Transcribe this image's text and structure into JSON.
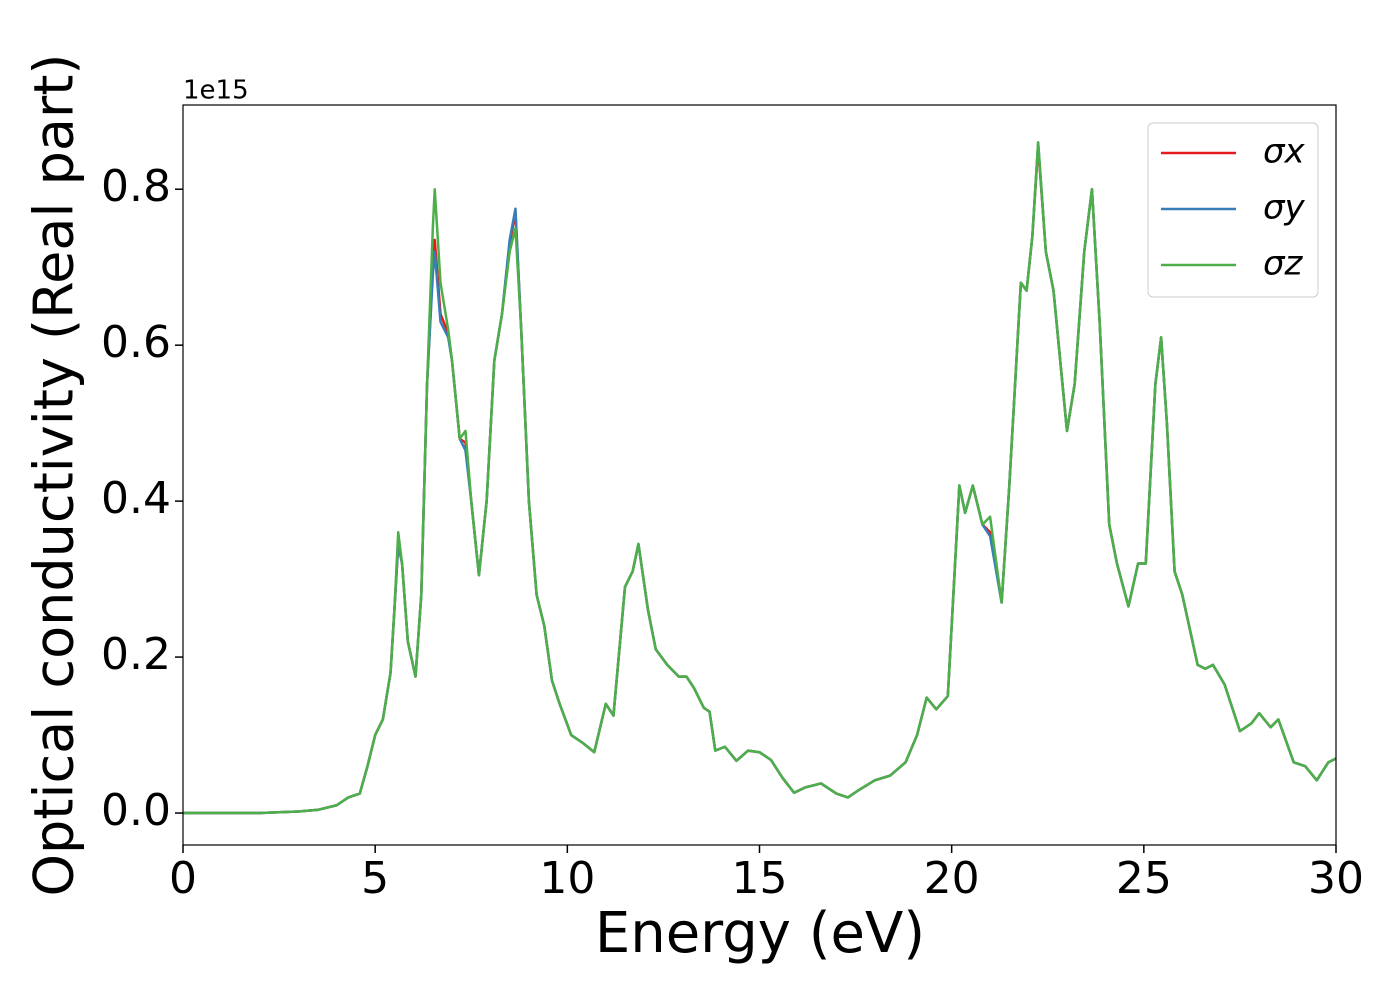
{
  "chart_data": {
    "type": "line",
    "xlabel": "Energy (eV)",
    "ylabel": "Optical conductivity (Real part)",
    "y_offset_label": "1e15",
    "xlim": [
      0,
      30
    ],
    "xticks": [
      0,
      5,
      10,
      15,
      20,
      25,
      30
    ],
    "ylim": [
      -0.041,
      0.908
    ],
    "yticks": [
      {
        "value": 0,
        "label": "0.0"
      },
      0.2,
      0.4,
      0.6,
      0.8
    ],
    "legend": "upper right",
    "x": [
      0,
      2,
      3,
      3.5,
      4,
      4.3,
      4.6,
      4.8,
      5.0,
      5.2,
      5.4,
      5.5,
      5.6,
      5.7,
      5.85,
      6.05,
      6.2,
      6.35,
      6.5,
      6.55,
      6.7,
      6.9,
      7.0,
      7.2,
      7.35,
      7.5,
      7.7,
      7.9,
      8.1,
      8.3,
      8.5,
      8.65,
      8.8,
      9.0,
      9.2,
      9.4,
      9.6,
      9.8,
      10.1,
      10.4,
      10.7,
      11.0,
      11.2,
      11.5,
      11.7,
      11.85,
      12.1,
      12.3,
      12.6,
      12.9,
      13.1,
      13.3,
      13.55,
      13.7,
      13.85,
      14.1,
      14.4,
      14.7,
      15.0,
      15.3,
      15.6,
      15.9,
      16.2,
      16.6,
      17.0,
      17.3,
      17.6,
      18.0,
      18.4,
      18.8,
      19.1,
      19.35,
      19.6,
      19.9,
      20.2,
      20.35,
      20.55,
      20.8,
      21.0,
      21.3,
      21.5,
      21.8,
      21.95,
      22.1,
      22.25,
      22.45,
      22.65,
      23.0,
      23.2,
      23.45,
      23.65,
      23.85,
      24.1,
      24.3,
      24.6,
      24.85,
      25.05,
      25.3,
      25.45,
      25.6,
      25.8,
      26.0,
      26.4,
      26.6,
      26.8,
      27.1,
      27.5,
      27.8,
      28.0,
      28.3,
      28.5,
      28.9,
      29.2,
      29.5,
      29.8,
      30
    ],
    "series": [
      {
        "name": "σx",
        "color": "#e41a1c",
        "values": [
          0,
          0,
          0.002,
          0.004,
          0.01,
          0.02,
          0.025,
          0.06,
          0.1,
          0.12,
          0.18,
          0.26,
          0.345,
          0.32,
          0.22,
          0.175,
          0.28,
          0.55,
          0.7,
          0.735,
          0.64,
          0.615,
          0.58,
          0.48,
          0.475,
          0.4,
          0.305,
          0.4,
          0.58,
          0.64,
          0.73,
          0.77,
          0.62,
          0.4,
          0.28,
          0.24,
          0.17,
          0.14,
          0.1,
          0.09,
          0.078,
          0.14,
          0.125,
          0.29,
          0.31,
          0.345,
          0.26,
          0.21,
          0.19,
          0.175,
          0.175,
          0.16,
          0.135,
          0.13,
          0.08,
          0.085,
          0.067,
          0.08,
          0.078,
          0.068,
          0.045,
          0.026,
          0.033,
          0.038,
          0.025,
          0.02,
          0.03,
          0.042,
          0.048,
          0.065,
          0.1,
          0.148,
          0.133,
          0.15,
          0.42,
          0.385,
          0.42,
          0.37,
          0.36,
          0.27,
          0.42,
          0.68,
          0.67,
          0.74,
          0.855,
          0.72,
          0.67,
          0.49,
          0.55,
          0.72,
          0.8,
          0.63,
          0.37,
          0.32,
          0.265,
          0.32,
          0.32,
          0.55,
          0.61,
          0.5,
          0.31,
          0.28,
          0.19,
          0.185,
          0.19,
          0.165,
          0.105,
          0.115,
          0.128,
          0.11,
          0.12,
          0.065,
          0.06,
          0.042,
          0.065,
          0.07
        ]
      },
      {
        "name": "σy",
        "color": "#377eb8",
        "values": [
          0,
          0,
          0.002,
          0.004,
          0.01,
          0.02,
          0.025,
          0.06,
          0.1,
          0.12,
          0.18,
          0.26,
          0.345,
          0.32,
          0.22,
          0.175,
          0.28,
          0.55,
          0.69,
          0.72,
          0.63,
          0.61,
          0.58,
          0.48,
          0.465,
          0.4,
          0.305,
          0.4,
          0.58,
          0.64,
          0.735,
          0.775,
          0.62,
          0.4,
          0.28,
          0.24,
          0.17,
          0.14,
          0.1,
          0.09,
          0.078,
          0.14,
          0.125,
          0.29,
          0.31,
          0.345,
          0.26,
          0.21,
          0.19,
          0.175,
          0.175,
          0.16,
          0.135,
          0.13,
          0.08,
          0.085,
          0.067,
          0.08,
          0.078,
          0.068,
          0.045,
          0.026,
          0.033,
          0.038,
          0.025,
          0.02,
          0.03,
          0.042,
          0.048,
          0.065,
          0.1,
          0.148,
          0.133,
          0.15,
          0.42,
          0.385,
          0.42,
          0.37,
          0.355,
          0.27,
          0.42,
          0.68,
          0.67,
          0.74,
          0.86,
          0.72,
          0.67,
          0.49,
          0.55,
          0.72,
          0.8,
          0.63,
          0.37,
          0.32,
          0.265,
          0.32,
          0.32,
          0.55,
          0.61,
          0.5,
          0.31,
          0.28,
          0.19,
          0.185,
          0.19,
          0.165,
          0.105,
          0.115,
          0.128,
          0.11,
          0.12,
          0.065,
          0.06,
          0.042,
          0.065,
          0.07
        ]
      },
      {
        "name": "σz",
        "color": "#4daf4a",
        "values": [
          0,
          0,
          0.002,
          0.004,
          0.01,
          0.02,
          0.025,
          0.06,
          0.1,
          0.12,
          0.18,
          0.26,
          0.36,
          0.32,
          0.22,
          0.175,
          0.28,
          0.55,
          0.75,
          0.8,
          0.68,
          0.62,
          0.58,
          0.48,
          0.49,
          0.4,
          0.305,
          0.4,
          0.58,
          0.64,
          0.72,
          0.75,
          0.62,
          0.4,
          0.28,
          0.24,
          0.17,
          0.14,
          0.1,
          0.09,
          0.078,
          0.14,
          0.125,
          0.29,
          0.31,
          0.345,
          0.26,
          0.21,
          0.19,
          0.175,
          0.175,
          0.16,
          0.135,
          0.13,
          0.08,
          0.085,
          0.067,
          0.08,
          0.078,
          0.068,
          0.045,
          0.026,
          0.033,
          0.038,
          0.025,
          0.02,
          0.03,
          0.042,
          0.048,
          0.065,
          0.1,
          0.148,
          0.133,
          0.15,
          0.42,
          0.385,
          0.42,
          0.37,
          0.38,
          0.27,
          0.42,
          0.68,
          0.67,
          0.74,
          0.86,
          0.72,
          0.67,
          0.49,
          0.55,
          0.72,
          0.8,
          0.63,
          0.37,
          0.32,
          0.265,
          0.32,
          0.32,
          0.55,
          0.61,
          0.5,
          0.31,
          0.28,
          0.19,
          0.185,
          0.19,
          0.165,
          0.105,
          0.115,
          0.128,
          0.11,
          0.12,
          0.065,
          0.06,
          0.042,
          0.065,
          0.07
        ]
      }
    ]
  }
}
